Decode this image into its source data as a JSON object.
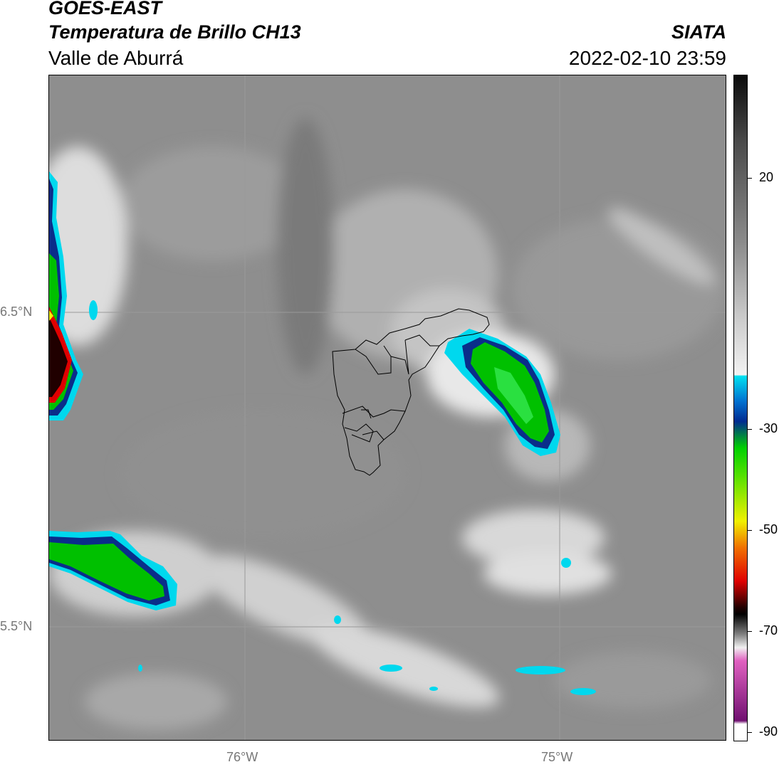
{
  "header": {
    "satellite": "GOES-EAST",
    "product": "Temperatura de Brillo CH13",
    "region": "Valle de Aburrá",
    "agency": "SIATA",
    "timestamp": "2022-02-10 23:59"
  },
  "map": {
    "lat_labels": [
      "6.5°N",
      "5.5°N"
    ],
    "lon_labels": [
      "76°W",
      "75°W"
    ]
  },
  "colorbar": {
    "labels": [
      "20",
      "-30",
      "-50",
      "-70",
      "-90"
    ],
    "colors": {
      "high": "#000000",
      "gray": "#8a8a8a",
      "white": "#f2f2f2",
      "cyan": "#00e0f0",
      "blue": "#002a90",
      "green": "#00d000",
      "yellow": "#f0f000",
      "orange": "#f07000",
      "red": "#e00000",
      "dark": "#200000",
      "pink": "#e060c0",
      "purple": "#701070"
    }
  }
}
